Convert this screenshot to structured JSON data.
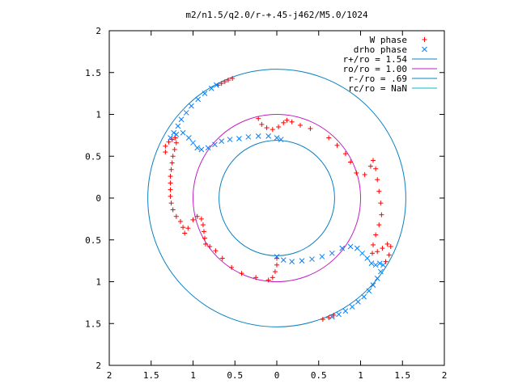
{
  "chart_data": {
    "type": "scatter",
    "title": "m2/n1.5/q2.0/r-+.45-j462/M5.0/1024",
    "xlim": [
      -2,
      2
    ],
    "ylim": [
      -2,
      2
    ],
    "x_ticks": [
      -2,
      -1.5,
      -1,
      -0.5,
      0,
      0.5,
      1,
      1.5,
      2
    ],
    "y_ticks": [
      -2,
      -1.5,
      -1,
      -0.5,
      0,
      0.5,
      1,
      1.5,
      2
    ],
    "x_tick_labels": [
      "2",
      "1.5",
      "1",
      "0.5",
      "0",
      "0.5",
      "1",
      "1.5",
      "2"
    ],
    "y_tick_labels": [
      "2",
      "1.5",
      "1",
      "0.5",
      "0",
      "0.5",
      "1",
      "1.5",
      "2"
    ],
    "grid": false,
    "legend_position": "top-right",
    "series": [
      {
        "name": "W phase",
        "marker": "plus",
        "color": "#ff0000",
        "points": [
          [
            -0.53,
            1.43
          ],
          [
            -0.58,
            1.41
          ],
          [
            -0.62,
            1.39
          ],
          [
            -0.66,
            1.37
          ],
          [
            -0.7,
            1.35
          ],
          [
            -1.33,
            0.55
          ],
          [
            -1.33,
            0.62
          ],
          [
            -1.29,
            0.67
          ],
          [
            -1.25,
            0.7
          ],
          [
            -1.21,
            0.72
          ],
          [
            -1.2,
            0.66
          ],
          [
            -1.22,
            0.58
          ],
          [
            -1.24,
            0.5
          ],
          [
            -1.25,
            0.42
          ],
          [
            -1.26,
            0.34
          ],
          [
            -1.27,
            0.26
          ],
          [
            -1.27,
            0.18
          ],
          [
            -1.27,
            0.1
          ],
          [
            -1.27,
            0.02
          ],
          [
            -1.26,
            -0.06
          ],
          [
            -1.24,
            -0.14
          ],
          [
            -1.2,
            -0.22
          ],
          [
            -1.15,
            -0.28
          ],
          [
            -1.12,
            -0.35
          ],
          [
            -1.1,
            -0.42
          ],
          [
            -1.06,
            -0.36
          ],
          [
            -1.0,
            -0.26
          ],
          [
            -0.95,
            -0.22
          ],
          [
            -0.9,
            -0.25
          ],
          [
            -0.88,
            -0.32
          ],
          [
            -0.87,
            -0.4
          ],
          [
            -0.86,
            -0.48
          ],
          [
            -0.85,
            -0.55
          ],
          [
            -0.8,
            -0.58
          ],
          [
            -0.73,
            -0.63
          ],
          [
            -0.65,
            -0.72
          ],
          [
            -0.54,
            -0.83
          ],
          [
            -0.42,
            -0.9
          ],
          [
            -0.25,
            -0.95
          ],
          [
            -0.1,
            -0.98
          ],
          [
            -0.05,
            -0.95
          ],
          [
            -0.02,
            -0.88
          ],
          [
            0.0,
            -0.8
          ],
          [
            0.0,
            -0.72
          ],
          [
            -0.22,
            0.95
          ],
          [
            -0.18,
            0.88
          ],
          [
            -0.12,
            0.84
          ],
          [
            -0.05,
            0.82
          ],
          [
            0.02,
            0.85
          ],
          [
            0.08,
            0.9
          ],
          [
            0.12,
            0.93
          ],
          [
            0.18,
            0.91
          ],
          [
            0.28,
            0.87
          ],
          [
            0.4,
            0.83
          ],
          [
            0.62,
            0.72
          ],
          [
            0.72,
            0.63
          ],
          [
            0.82,
            0.53
          ],
          [
            0.88,
            0.43
          ],
          [
            0.95,
            0.3
          ],
          [
            1.05,
            0.28
          ],
          [
            1.12,
            0.38
          ],
          [
            1.15,
            0.45
          ],
          [
            1.18,
            0.35
          ],
          [
            1.2,
            0.22
          ],
          [
            1.22,
            0.08
          ],
          [
            1.24,
            -0.06
          ],
          [
            1.25,
            -0.2
          ],
          [
            1.22,
            -0.32
          ],
          [
            1.18,
            -0.44
          ],
          [
            1.15,
            -0.56
          ],
          [
            1.14,
            -0.66
          ],
          [
            1.2,
            -0.64
          ],
          [
            1.26,
            -0.6
          ],
          [
            1.32,
            -0.55
          ],
          [
            1.36,
            -0.58
          ],
          [
            1.34,
            -0.68
          ],
          [
            1.3,
            -0.76
          ],
          [
            0.55,
            -1.45
          ],
          [
            0.62,
            -1.43
          ],
          [
            0.68,
            -1.4
          ]
        ]
      },
      {
        "name": "drho phase",
        "marker": "cross",
        "color": "#0080ff",
        "points": [
          [
            -0.72,
            1.35
          ],
          [
            -0.78,
            1.31
          ],
          [
            -0.86,
            1.25
          ],
          [
            -0.94,
            1.18
          ],
          [
            -1.02,
            1.1
          ],
          [
            -1.08,
            1.02
          ],
          [
            -1.14,
            0.94
          ],
          [
            -1.18,
            0.86
          ],
          [
            -1.23,
            0.78
          ],
          [
            -1.27,
            0.72
          ],
          [
            -1.2,
            0.76
          ],
          [
            -1.12,
            0.78
          ],
          [
            -1.05,
            0.72
          ],
          [
            -1.0,
            0.66
          ],
          [
            -0.95,
            0.6
          ],
          [
            -0.9,
            0.58
          ],
          [
            -0.82,
            0.6
          ],
          [
            -0.74,
            0.64
          ],
          [
            -0.66,
            0.68
          ],
          [
            -0.56,
            0.7
          ],
          [
            -0.45,
            0.71
          ],
          [
            -0.34,
            0.73
          ],
          [
            -0.22,
            0.74
          ],
          [
            -0.1,
            0.74
          ],
          [
            0.0,
            0.72
          ],
          [
            0.05,
            0.7
          ],
          [
            0.0,
            -0.7
          ],
          [
            0.08,
            -0.74
          ],
          [
            0.18,
            -0.76
          ],
          [
            0.3,
            -0.75
          ],
          [
            0.42,
            -0.73
          ],
          [
            0.54,
            -0.7
          ],
          [
            0.66,
            -0.66
          ],
          [
            0.78,
            -0.6
          ],
          [
            0.88,
            -0.58
          ],
          [
            0.96,
            -0.6
          ],
          [
            1.02,
            -0.66
          ],
          [
            1.08,
            -0.72
          ],
          [
            1.13,
            -0.78
          ],
          [
            1.18,
            -0.8
          ],
          [
            1.23,
            -0.78
          ],
          [
            1.27,
            -0.8
          ],
          [
            1.24,
            -0.88
          ],
          [
            1.2,
            -0.96
          ],
          [
            1.15,
            -1.04
          ],
          [
            1.1,
            -1.11
          ],
          [
            1.04,
            -1.18
          ],
          [
            0.97,
            -1.24
          ],
          [
            0.9,
            -1.3
          ],
          [
            0.82,
            -1.35
          ],
          [
            0.74,
            -1.39
          ],
          [
            0.66,
            -1.42
          ]
        ]
      },
      {
        "name": "r+/ro = 1.54",
        "type": "circle",
        "radius": 1.54,
        "color": "#0a80c0"
      },
      {
        "name": "ro/ro = 1.00",
        "type": "circle",
        "radius": 1.0,
        "color": "#c020c0"
      },
      {
        "name": "r-/ro = .69",
        "type": "circle",
        "radius": 0.69,
        "color": "#0a80c0"
      },
      {
        "name": "rc/ro = NaN",
        "type": "circle",
        "radius": null,
        "color": "#00c0c0"
      }
    ]
  }
}
